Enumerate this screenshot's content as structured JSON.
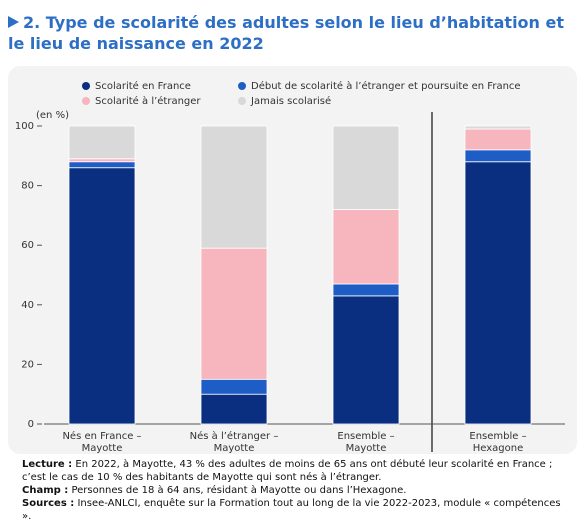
{
  "chart_data": {
    "type": "stacked_bar",
    "title": "2. Type de scolarité des adultes selon le lieu d’habitation et le lieu de naissance en 2022",
    "ylabel": "(en %)",
    "categories": [
      "Nés en France – Mayotte",
      "Nés à l’étranger – Mayotte",
      "Ensemble – Mayotte",
      "Ensemble – Hexagone"
    ],
    "series": [
      {
        "name": "Scolarité en France",
        "color": "#0b2f80",
        "values": [
          86,
          10,
          43,
          88
        ]
      },
      {
        "name": "Début de scolarité à l’étranger et poursuite en France",
        "color": "#1e5cc6",
        "values": [
          2,
          5,
          4,
          4
        ]
      },
      {
        "name": "Scolarité à l’étranger",
        "color": "#f7b5be",
        "values": [
          1,
          44,
          25,
          7
        ]
      },
      {
        "name": "Jamais scolarisé",
        "color": "#d9d9d9",
        "values": [
          11,
          41,
          28,
          1
        ]
      }
    ],
    "ylim": [
      0,
      100
    ],
    "yticks": [
      0,
      20,
      40,
      60,
      80,
      100
    ],
    "notes": [
      {
        "label": "Lecture :",
        "text": "En 2022, à Mayotte, 43 % des adultes de moins de 65 ans ont débuté leur scolarité en France ; c’est le cas de 10 % des habitants de Mayotte qui sont nés à l’étranger."
      },
      {
        "label": "Champ :",
        "text": "Personnes de 18 à 64 ans, résidant à Mayotte ou dans l’Hexagone."
      },
      {
        "label": "Sources :",
        "text": "Insee-ANLCI, enquête sur la Formation tout au long de la vie 2022-2023, module « compétences »."
      }
    ]
  }
}
